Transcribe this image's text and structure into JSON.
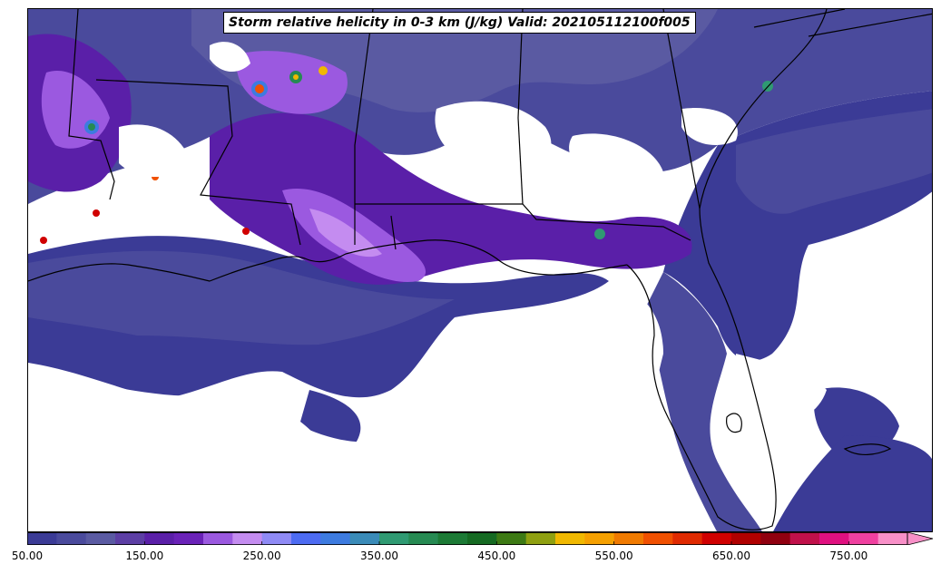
{
  "title": "Storm relative helicity in 0-3 km (J/kg) Valid: 2021051121​00f005",
  "colorbar": {
    "min": 50,
    "max": 800,
    "step": 25,
    "extend": "max",
    "colors": [
      "#3b3b96",
      "#4a4a9c",
      "#5a5aa2",
      "#5c3ea4",
      "#5a1fa8",
      "#6a22b8",
      "#9b59e0",
      "#c48cf0",
      "#8f8af5",
      "#4d6bf2",
      "#3d7be0",
      "#3a8bb8",
      "#2f9a72",
      "#268a52",
      "#1c7a35",
      "#156a22",
      "#3d7a14",
      "#8fa010",
      "#f0b800",
      "#f5a000",
      "#f07a00",
      "#f05000",
      "#e02a00",
      "#d00000",
      "#b00000",
      "#900010",
      "#c0104a",
      "#e01080",
      "#f040a0",
      "#f890c8"
    ],
    "tick_labels": [
      "50.00",
      "150.00",
      "250.00",
      "350.00",
      "450.00",
      "550.00",
      "650.00",
      "750.00"
    ],
    "tick_values": [
      50,
      150,
      250,
      350,
      450,
      550,
      650,
      750
    ]
  },
  "colors": {
    "low": "#3b3b96",
    "mid": "#5a1fa8",
    "high": "#c48cf0",
    "coast": "#000000"
  }
}
